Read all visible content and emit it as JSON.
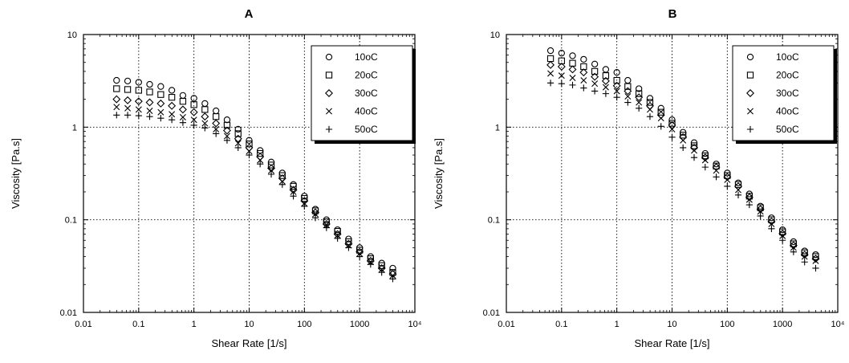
{
  "chart_data": [
    {
      "type": "scatter",
      "title": "A",
      "xlabel": "Shear Rate [1/s]",
      "ylabel": "Viscosity [Pa.s]",
      "xscale": "log",
      "yscale": "log",
      "xlim": [
        0.01,
        10000
      ],
      "ylim": [
        0.01,
        10
      ],
      "xticks": [
        "0.01",
        "0.1",
        "1",
        "10",
        "100",
        "1000",
        "10⁴"
      ],
      "yticks": [
        "0.01",
        "0.1",
        "1",
        "10"
      ],
      "grid": true,
      "legend_position": "top-right",
      "x": [
        0.0398,
        0.0631,
        0.1,
        0.158,
        0.251,
        0.398,
        0.631,
        1.0,
        1.58,
        2.51,
        3.98,
        6.31,
        10,
        15.8,
        25.1,
        39.8,
        63.1,
        100,
        158,
        251,
        398,
        631,
        1000,
        1580,
        2510,
        3980
      ],
      "series": [
        {
          "name": "10oC",
          "marker": "circle",
          "values": [
            3.2,
            3.15,
            3.05,
            2.9,
            2.75,
            2.5,
            2.2,
            2.05,
            1.8,
            1.5,
            1.2,
            0.95,
            0.72,
            0.56,
            0.42,
            0.32,
            0.24,
            0.18,
            0.13,
            0.1,
            0.078,
            0.062,
            0.05,
            0.04,
            0.034,
            0.03
          ]
        },
        {
          "name": "20oC",
          "marker": "square",
          "values": [
            2.6,
            2.55,
            2.5,
            2.4,
            2.25,
            2.1,
            1.9,
            1.75,
            1.55,
            1.3,
            1.05,
            0.85,
            0.66,
            0.52,
            0.39,
            0.3,
            0.23,
            0.17,
            0.125,
            0.095,
            0.075,
            0.058,
            0.047,
            0.038,
            0.032,
            0.027
          ]
        },
        {
          "name": "30oC",
          "marker": "diamond",
          "values": [
            2.0,
            1.95,
            1.9,
            1.85,
            1.8,
            1.7,
            1.55,
            1.45,
            1.3,
            1.1,
            0.92,
            0.75,
            0.6,
            0.48,
            0.36,
            0.28,
            0.21,
            0.16,
            0.12,
            0.09,
            0.07,
            0.055,
            0.045,
            0.036,
            0.03,
            0.026
          ]
        },
        {
          "name": "40oC",
          "marker": "x",
          "values": [
            1.65,
            1.6,
            1.55,
            1.5,
            1.45,
            1.38,
            1.28,
            1.2,
            1.1,
            0.95,
            0.8,
            0.67,
            0.55,
            0.44,
            0.34,
            0.26,
            0.2,
            0.15,
            0.115,
            0.088,
            0.068,
            0.053,
            0.043,
            0.035,
            0.029,
            0.025
          ]
        },
        {
          "name": "50oC",
          "marker": "plus",
          "values": [
            1.35,
            1.35,
            1.33,
            1.3,
            1.25,
            1.2,
            1.12,
            1.05,
            0.98,
            0.85,
            0.72,
            0.6,
            0.5,
            0.4,
            0.31,
            0.24,
            0.18,
            0.14,
            0.105,
            0.082,
            0.063,
            0.05,
            0.04,
            0.033,
            0.027,
            0.023
          ]
        }
      ]
    },
    {
      "type": "scatter",
      "title": "B",
      "xlabel": "Shear Rate [1/s]",
      "ylabel": "Viscosity [Pa.s]",
      "xscale": "log",
      "yscale": "log",
      "xlim": [
        0.01,
        10000
      ],
      "ylim": [
        0.01,
        10
      ],
      "xticks": [
        "0.01",
        "0.1",
        "1",
        "10",
        "100",
        "1000",
        "10⁴"
      ],
      "yticks": [
        "0.01",
        "0.1",
        "1",
        "10"
      ],
      "grid": true,
      "legend_position": "top-right",
      "x": [
        0.0631,
        0.1,
        0.158,
        0.251,
        0.398,
        0.631,
        1.0,
        1.58,
        2.51,
        3.98,
        6.31,
        10,
        15.8,
        25.1,
        39.8,
        63.1,
        100,
        158,
        251,
        398,
        631,
        1000,
        1580,
        2510,
        3980
      ],
      "series": [
        {
          "name": "10oC",
          "marker": "circle",
          "values": [
            6.7,
            6.3,
            5.9,
            5.4,
            4.8,
            4.2,
            3.9,
            3.2,
            2.6,
            2.05,
            1.6,
            1.2,
            0.88,
            0.68,
            0.52,
            0.4,
            0.32,
            0.25,
            0.19,
            0.14,
            0.105,
            0.078,
            0.058,
            0.046,
            0.042
          ]
        },
        {
          "name": "20oC",
          "marker": "square",
          "values": [
            5.5,
            5.2,
            4.9,
            4.5,
            4.0,
            3.6,
            3.2,
            2.75,
            2.3,
            1.85,
            1.45,
            1.1,
            0.82,
            0.63,
            0.49,
            0.38,
            0.3,
            0.24,
            0.18,
            0.135,
            0.1,
            0.074,
            0.055,
            0.044,
            0.04
          ]
        },
        {
          "name": "30oC",
          "marker": "diamond",
          "values": [
            4.7,
            4.5,
            4.2,
            3.9,
            3.5,
            3.15,
            2.8,
            2.45,
            2.1,
            1.7,
            1.35,
            1.05,
            0.78,
            0.6,
            0.47,
            0.37,
            0.29,
            0.23,
            0.175,
            0.13,
            0.096,
            0.071,
            0.053,
            0.042,
            0.038
          ]
        },
        {
          "name": "40oC",
          "marker": "x",
          "values": [
            3.8,
            3.6,
            3.4,
            3.2,
            2.95,
            2.7,
            2.45,
            2.15,
            1.85,
            1.55,
            1.25,
            0.95,
            0.72,
            0.56,
            0.44,
            0.34,
            0.27,
            0.21,
            0.165,
            0.123,
            0.09,
            0.067,
            0.05,
            0.04,
            0.036
          ]
        },
        {
          "name": "50oC",
          "marker": "plus",
          "values": [
            3.0,
            2.95,
            2.85,
            2.65,
            2.45,
            2.3,
            2.1,
            1.85,
            1.6,
            1.3,
            1.02,
            0.78,
            0.6,
            0.47,
            0.37,
            0.29,
            0.23,
            0.185,
            0.145,
            0.11,
            0.08,
            0.06,
            0.045,
            0.035,
            0.03
          ]
        }
      ]
    }
  ]
}
